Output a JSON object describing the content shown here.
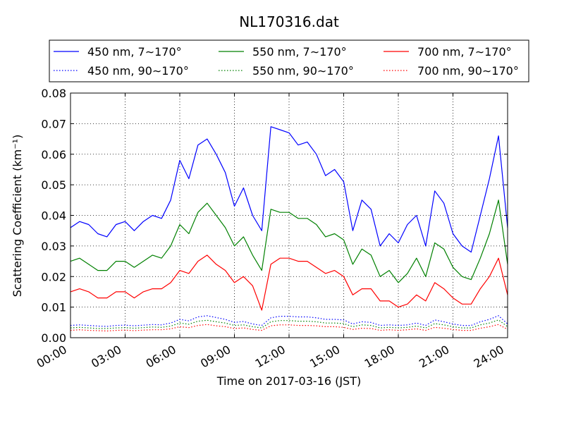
{
  "chart_data": {
    "type": "line",
    "title": "NL170316.dat",
    "xlabel": "Time on 2017-03-16 (JST)",
    "ylabel": "Scattering Coefficient (km⁻¹)",
    "x_unit": "hours since 00:00",
    "xlim": [
      0,
      24
    ],
    "ylim": [
      0,
      0.08
    ],
    "xticks": [
      "00:00",
      "03:00",
      "06:00",
      "09:00",
      "12:00",
      "15:00",
      "18:00",
      "21:00",
      "24:00"
    ],
    "yticks": [
      "0.00",
      "0.01",
      "0.02",
      "0.03",
      "0.04",
      "0.05",
      "0.06",
      "0.07",
      "0.08"
    ],
    "grid": true,
    "legend_position": "top, above plot",
    "x": [
      0,
      0.5,
      1,
      1.5,
      2,
      2.5,
      3,
      3.5,
      4,
      4.5,
      5,
      5.5,
      6,
      6.5,
      7,
      7.5,
      8,
      8.5,
      9,
      9.5,
      10,
      10.5,
      11,
      11.5,
      12,
      12.5,
      13,
      13.5,
      14,
      14.5,
      15,
      15.5,
      16,
      16.5,
      17,
      17.5,
      18,
      18.5,
      19,
      19.5,
      20,
      20.5,
      21,
      21.5,
      22,
      22.5,
      23,
      23.5,
      24
    ],
    "series": [
      {
        "name": "450 nm, 7∼170°",
        "color": "#0000ff",
        "style": "solid",
        "values": [
          0.036,
          0.038,
          0.037,
          0.034,
          0.033,
          0.037,
          0.038,
          0.035,
          0.038,
          0.04,
          0.039,
          0.045,
          0.058,
          0.052,
          0.063,
          0.065,
          0.06,
          0.054,
          0.043,
          0.049,
          0.04,
          0.035,
          0.069,
          0.068,
          0.067,
          0.063,
          0.064,
          0.06,
          0.053,
          0.055,
          0.051,
          0.035,
          0.045,
          0.042,
          0.03,
          0.034,
          0.031,
          0.037,
          0.04,
          0.03,
          0.048,
          0.044,
          0.034,
          0.03,
          0.028,
          0.04,
          0.052,
          0.066,
          0.036
        ]
      },
      {
        "name": "550 nm, 7∼170°",
        "color": "#008000",
        "style": "solid",
        "values": [
          0.025,
          0.026,
          0.024,
          0.022,
          0.022,
          0.025,
          0.025,
          0.023,
          0.025,
          0.027,
          0.026,
          0.03,
          0.037,
          0.034,
          0.041,
          0.044,
          0.04,
          0.036,
          0.03,
          0.033,
          0.027,
          0.022,
          0.042,
          0.041,
          0.041,
          0.039,
          0.039,
          0.037,
          0.033,
          0.034,
          0.032,
          0.024,
          0.029,
          0.027,
          0.02,
          0.022,
          0.018,
          0.021,
          0.026,
          0.02,
          0.031,
          0.029,
          0.023,
          0.02,
          0.019,
          0.026,
          0.034,
          0.045,
          0.024
        ]
      },
      {
        "name": "700 nm, 7∼170°",
        "color": "#ff0000",
        "style": "solid",
        "values": [
          0.015,
          0.016,
          0.015,
          0.013,
          0.013,
          0.015,
          0.015,
          0.013,
          0.015,
          0.016,
          0.016,
          0.018,
          0.022,
          0.021,
          0.025,
          0.027,
          0.024,
          0.022,
          0.018,
          0.02,
          0.017,
          0.009,
          0.024,
          0.026,
          0.026,
          0.025,
          0.025,
          0.023,
          0.021,
          0.022,
          0.02,
          0.014,
          0.016,
          0.016,
          0.012,
          0.012,
          0.01,
          0.011,
          0.014,
          0.012,
          0.018,
          0.016,
          0.013,
          0.011,
          0.011,
          0.016,
          0.02,
          0.026,
          0.014
        ]
      },
      {
        "name": "450 nm, 90∼170°",
        "color": "#0000ff",
        "style": "dotted",
        "values": [
          0.004,
          0.0042,
          0.004,
          0.0038,
          0.0037,
          0.004,
          0.0041,
          0.0039,
          0.0041,
          0.0043,
          0.0042,
          0.0048,
          0.006,
          0.0055,
          0.0068,
          0.0072,
          0.0066,
          0.006,
          0.005,
          0.0053,
          0.0045,
          0.004,
          0.0065,
          0.007,
          0.007,
          0.0068,
          0.0068,
          0.0065,
          0.006,
          0.006,
          0.0058,
          0.0045,
          0.0052,
          0.005,
          0.004,
          0.0042,
          0.004,
          0.0042,
          0.0048,
          0.004,
          0.0058,
          0.0052,
          0.0045,
          0.004,
          0.004,
          0.0052,
          0.006,
          0.0072,
          0.0045
        ]
      },
      {
        "name": "550 nm, 90∼170°",
        "color": "#008000",
        "style": "dotted",
        "values": [
          0.0032,
          0.0034,
          0.0032,
          0.003,
          0.003,
          0.0032,
          0.0033,
          0.0031,
          0.0033,
          0.0035,
          0.0034,
          0.0038,
          0.0048,
          0.0044,
          0.0054,
          0.0057,
          0.0052,
          0.0048,
          0.004,
          0.0042,
          0.0036,
          0.0032,
          0.0052,
          0.0056,
          0.0056,
          0.0054,
          0.0054,
          0.0052,
          0.0048,
          0.0048,
          0.0046,
          0.0036,
          0.0042,
          0.004,
          0.0032,
          0.0034,
          0.0032,
          0.0034,
          0.0038,
          0.0032,
          0.0046,
          0.0042,
          0.0036,
          0.0032,
          0.0032,
          0.0042,
          0.0048,
          0.0058,
          0.0036
        ]
      },
      {
        "name": "700 nm, 90∼170°",
        "color": "#ff0000",
        "style": "dotted",
        "values": [
          0.0024,
          0.0026,
          0.0024,
          0.0023,
          0.0022,
          0.0024,
          0.0025,
          0.0023,
          0.0025,
          0.0026,
          0.0026,
          0.0029,
          0.0036,
          0.0033,
          0.004,
          0.0043,
          0.0039,
          0.0036,
          0.003,
          0.0032,
          0.0027,
          0.0024,
          0.0039,
          0.0042,
          0.0042,
          0.004,
          0.004,
          0.0039,
          0.0036,
          0.0036,
          0.0034,
          0.0027,
          0.0031,
          0.003,
          0.0024,
          0.0026,
          0.0024,
          0.0026,
          0.0029,
          0.0024,
          0.0034,
          0.0031,
          0.0027,
          0.0024,
          0.0024,
          0.0031,
          0.0036,
          0.0043,
          0.0027
        ]
      }
    ]
  }
}
